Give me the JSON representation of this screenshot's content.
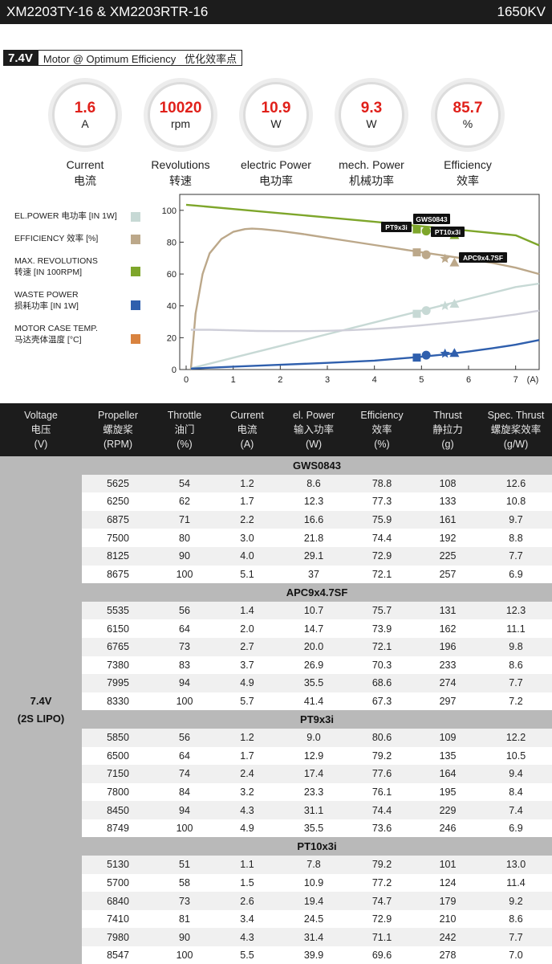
{
  "header": {
    "title": "XM2203TY-16 & XM2203RTR-16",
    "kv": "1650KV"
  },
  "mode": {
    "voltage": "7.4V",
    "label": "Motor @ Optimum Efficiency   优化效率点"
  },
  "stats": [
    {
      "value": "1.6",
      "unit": "A",
      "label_en": "Current",
      "label_cn": "电流"
    },
    {
      "value": "10020",
      "unit": "rpm",
      "label_en": "Revolutions",
      "label_cn": "转速"
    },
    {
      "value": "10.9",
      "unit": "W",
      "label_en": "electric Power",
      "label_cn": "电功率"
    },
    {
      "value": "9.3",
      "unit": "W",
      "label_en": "mech. Power",
      "label_cn": "机械功率"
    },
    {
      "value": "85.7",
      "unit": "%",
      "label_en": "Efficiency",
      "label_cn": "效率"
    }
  ],
  "legend": [
    {
      "line1": "EL.POWER 电功率 [IN 1W]",
      "line2": "",
      "color": "#c7d9d5"
    },
    {
      "line1": "EFFICIENCY 效率 [%]",
      "line2": "",
      "color": "#bca88a"
    },
    {
      "line1": "MAX. REVOLUTIONS",
      "line2": "转速 [IN 100RPM]",
      "color": "#7ea62b"
    },
    {
      "line1": "WASTE POWER",
      "line2": "损耗功率 [IN 1W]",
      "color": "#2f5fad"
    },
    {
      "line1": "MOTOR CASE TEMP.",
      "line2": "马达壳体温度 [°C]",
      "color": "#d9833f"
    }
  ],
  "chart_data": {
    "type": "line",
    "xlim": [
      0,
      7.5
    ],
    "ylim": [
      0,
      110
    ],
    "x_ticks": [
      0,
      1,
      2,
      3,
      4,
      5,
      6,
      7
    ],
    "y_ticks": [
      0,
      20,
      40,
      60,
      80,
      100
    ],
    "x_unit": "(A)",
    "series": [
      {
        "key": "revolutions",
        "color": "#7ea62b",
        "x": [
          0,
          1,
          2,
          3,
          4,
          5,
          6,
          7,
          7.5
        ],
        "y": [
          103.5,
          100.8,
          98.2,
          95.5,
          92.8,
          90,
          87.2,
          84.3,
          78
        ]
      },
      {
        "key": "efficiency",
        "color": "#bca88a",
        "x": [
          0.1,
          0.2,
          0.35,
          0.5,
          0.75,
          1.0,
          1.25,
          1.4,
          1.6,
          2.0,
          2.5,
          3.0,
          3.5,
          4.0,
          4.5,
          5.0,
          5.5,
          6.0,
          6.5,
          7.0,
          7.5
        ],
        "y": [
          0,
          35,
          60,
          73,
          82,
          86.5,
          88.2,
          88.5,
          88.2,
          87,
          85,
          82.7,
          80.5,
          78.2,
          76,
          73.6,
          71.5,
          69.3,
          67,
          64,
          60
        ]
      },
      {
        "key": "el_power",
        "color": "#c7d9d5",
        "x": [
          0.1,
          1,
          2,
          3,
          4,
          5,
          6,
          7,
          7.5
        ],
        "y": [
          0.7,
          7.4,
          14.8,
          22.2,
          29.6,
          37,
          44.4,
          51.8,
          54
        ]
      },
      {
        "key": "case_temp",
        "color": "#cfcfd9",
        "x": [
          0.1,
          0.5,
          1,
          1.5,
          2,
          2.5,
          3,
          3.5,
          4,
          4.5,
          5,
          5.5,
          6,
          6.5,
          7,
          7.5
        ],
        "y": [
          25,
          25,
          24.6,
          24.2,
          24.1,
          24.1,
          24.3,
          24.8,
          25.5,
          26.5,
          27.8,
          29.2,
          30.8,
          32.6,
          34.6,
          37
        ]
      },
      {
        "key": "waste_power",
        "color": "#2f5fad",
        "x": [
          0.1,
          1,
          2,
          3,
          4,
          5,
          5.5,
          6,
          6.5,
          7,
          7.5
        ],
        "y": [
          0.6,
          1.8,
          3,
          4.2,
          5.6,
          8,
          9.5,
          11.3,
          13.3,
          15.6,
          18.5
        ]
      }
    ],
    "markers": [
      {
        "name": "PT9x3i",
        "shape": "square",
        "x": 4.9,
        "points": [
          88,
          73.6,
          35,
          7.5
        ]
      },
      {
        "name": "GWS0843",
        "shape": "circle",
        "x": 5.1,
        "points": [
          87,
          72.1,
          37,
          9
        ]
      },
      {
        "name": "PT10x3i",
        "shape": "star",
        "x": 5.5,
        "points": [
          86,
          69.6,
          40,
          10
        ]
      },
      {
        "name": "APC9x4.7SF",
        "shape": "triangle",
        "x": 5.7,
        "points": [
          84.5,
          67.3,
          41.4,
          10.5
        ]
      }
    ],
    "data_labels": [
      "PT9x3i",
      "GWS0843",
      "PT10x3i",
      "APC9x4.7SF"
    ]
  },
  "table": {
    "headers": [
      [
        "Voltage",
        "电压",
        "(V)"
      ],
      [
        "Propeller",
        "螺旋桨",
        "(RPM)"
      ],
      [
        "Throttle",
        "油门",
        "(%)"
      ],
      [
        "Current",
        "电流",
        "(A)"
      ],
      [
        "el. Power",
        "输入功率",
        "(W)"
      ],
      [
        "Efficiency",
        "效率",
        "(%)"
      ],
      [
        "Thrust",
        "静拉力",
        "(g)"
      ],
      [
        "Spec. Thrust",
        "螺旋桨效率",
        "(g/W)"
      ]
    ],
    "voltage_line1": "7.4V",
    "voltage_line2": "(2S LIPO)",
    "groups": [
      {
        "name": "GWS0843",
        "rows": [
          [
            "5625",
            "54",
            "1.2",
            "8.6",
            "78.8",
            "108",
            "12.6"
          ],
          [
            "6250",
            "62",
            "1.7",
            "12.3",
            "77.3",
            "133",
            "10.8"
          ],
          [
            "6875",
            "71",
            "2.2",
            "16.6",
            "75.9",
            "161",
            "9.7"
          ],
          [
            "7500",
            "80",
            "3.0",
            "21.8",
            "74.4",
            "192",
            "8.8"
          ],
          [
            "8125",
            "90",
            "4.0",
            "29.1",
            "72.9",
            "225",
            "7.7"
          ],
          [
            "8675",
            "100",
            "5.1",
            "37",
            "72.1",
            "257",
            "6.9"
          ]
        ]
      },
      {
        "name": "APC9x4.7SF",
        "rows": [
          [
            "5535",
            "56",
            "1.4",
            "10.7",
            "75.7",
            "131",
            "12.3"
          ],
          [
            "6150",
            "64",
            "2.0",
            "14.7",
            "73.9",
            "162",
            "11.1"
          ],
          [
            "6765",
            "73",
            "2.7",
            "20.0",
            "72.1",
            "196",
            "9.8"
          ],
          [
            "7380",
            "83",
            "3.7",
            "26.9",
            "70.3",
            "233",
            "8.6"
          ],
          [
            "7995",
            "94",
            "4.9",
            "35.5",
            "68.6",
            "274",
            "7.7"
          ],
          [
            "8330",
            "100",
            "5.7",
            "41.4",
            "67.3",
            "297",
            "7.2"
          ]
        ]
      },
      {
        "name": "PT9x3i",
        "rows": [
          [
            "5850",
            "56",
            "1.2",
            "9.0",
            "80.6",
            "109",
            "12.2"
          ],
          [
            "6500",
            "64",
            "1.7",
            "12.9",
            "79.2",
            "135",
            "10.5"
          ],
          [
            "7150",
            "74",
            "2.4",
            "17.4",
            "77.6",
            "164",
            "9.4"
          ],
          [
            "7800",
            "84",
            "3.2",
            "23.3",
            "76.1",
            "195",
            "8.4"
          ],
          [
            "8450",
            "94",
            "4.3",
            "31.1",
            "74.4",
            "229",
            "7.4"
          ],
          [
            "8749",
            "100",
            "4.9",
            "35.5",
            "73.6",
            "246",
            "6.9"
          ]
        ]
      },
      {
        "name": "PT10x3i",
        "rows": [
          [
            "5130",
            "51",
            "1.1",
            "7.8",
            "79.2",
            "101",
            "13.0"
          ],
          [
            "5700",
            "58",
            "1.5",
            "10.9",
            "77.2",
            "124",
            "11.4"
          ],
          [
            "6840",
            "73",
            "2.6",
            "19.4",
            "74.7",
            "179",
            "9.2"
          ],
          [
            "7410",
            "81",
            "3.4",
            "24.5",
            "72.9",
            "210",
            "8.6"
          ],
          [
            "7980",
            "90",
            "4.3",
            "31.4",
            "71.1",
            "242",
            "7.7"
          ],
          [
            "8547",
            "100",
            "5.5",
            "39.9",
            "69.6",
            "278",
            "7.0"
          ]
        ]
      }
    ]
  }
}
